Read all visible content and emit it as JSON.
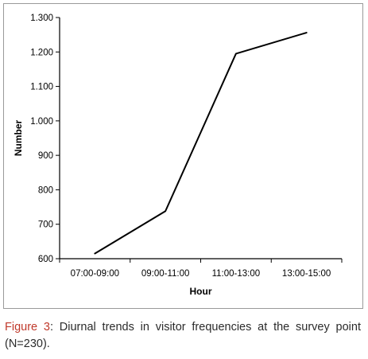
{
  "chart_data": {
    "type": "line",
    "title": "",
    "xlabel": "Hour",
    "ylabel": "Number",
    "categories": [
      "07:00-09:00",
      "09:00-11:00",
      "11:00-13:00",
      "13:00-15:00"
    ],
    "x_positions": [
      0.5,
      1.5,
      2.5,
      3.5
    ],
    "series": [
      {
        "x": [
          0.5,
          1.5,
          2.5,
          3.5
        ],
        "values": [
          615,
          738,
          1195,
          1256
        ]
      }
    ],
    "ylim": [
      600,
      1300
    ],
    "xlim": [
      0,
      4
    ],
    "y_ticks": [
      600,
      700,
      800,
      900,
      1000,
      1100,
      1200,
      1300
    ],
    "y_tick_labels": [
      "600",
      "700",
      "800",
      "900",
      "1.000",
      "1.100",
      "1.200",
      "1.300"
    ],
    "grid": false,
    "legend": "none",
    "line_color": "#000000"
  },
  "caption": {
    "label": "Figure 3",
    "text": ": Diurnal trends in visitor frequencies at the survey point (N=230)."
  }
}
